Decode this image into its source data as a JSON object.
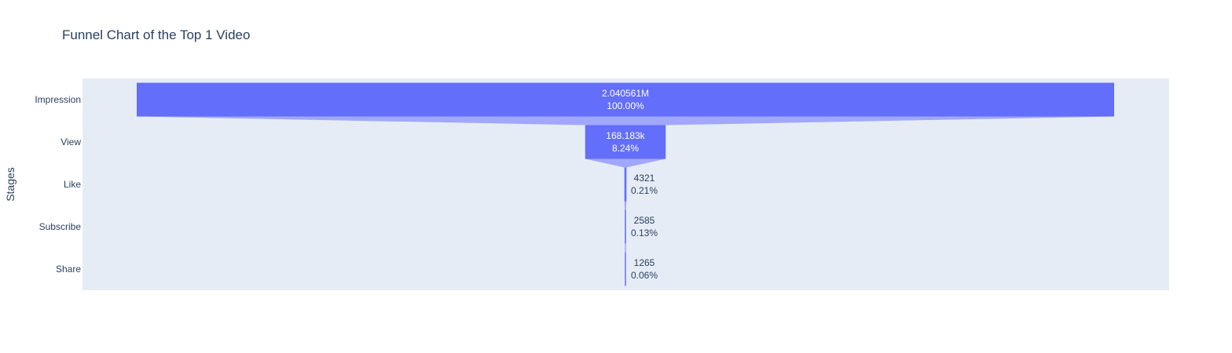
{
  "chart_data": {
    "type": "funnel",
    "title": "Funnel Chart of the Top 1 Video",
    "ylabel": "Stages",
    "categories": [
      "Impression",
      "View",
      "Like",
      "Subscribe",
      "Share"
    ],
    "values": [
      2040561,
      168183,
      4321,
      2585,
      1265
    ],
    "labels": [
      "2.040561M",
      "168.183k",
      "4321",
      "2585",
      "1265"
    ],
    "percents": [
      "100.00%",
      "8.24%",
      "0.21%",
      "0.13%",
      "0.06%"
    ],
    "colors": {
      "bar": "#636efa",
      "connector": "#a1a7fa",
      "plot_bg": "#e5ecf6",
      "text": "#2a3f5f"
    }
  }
}
